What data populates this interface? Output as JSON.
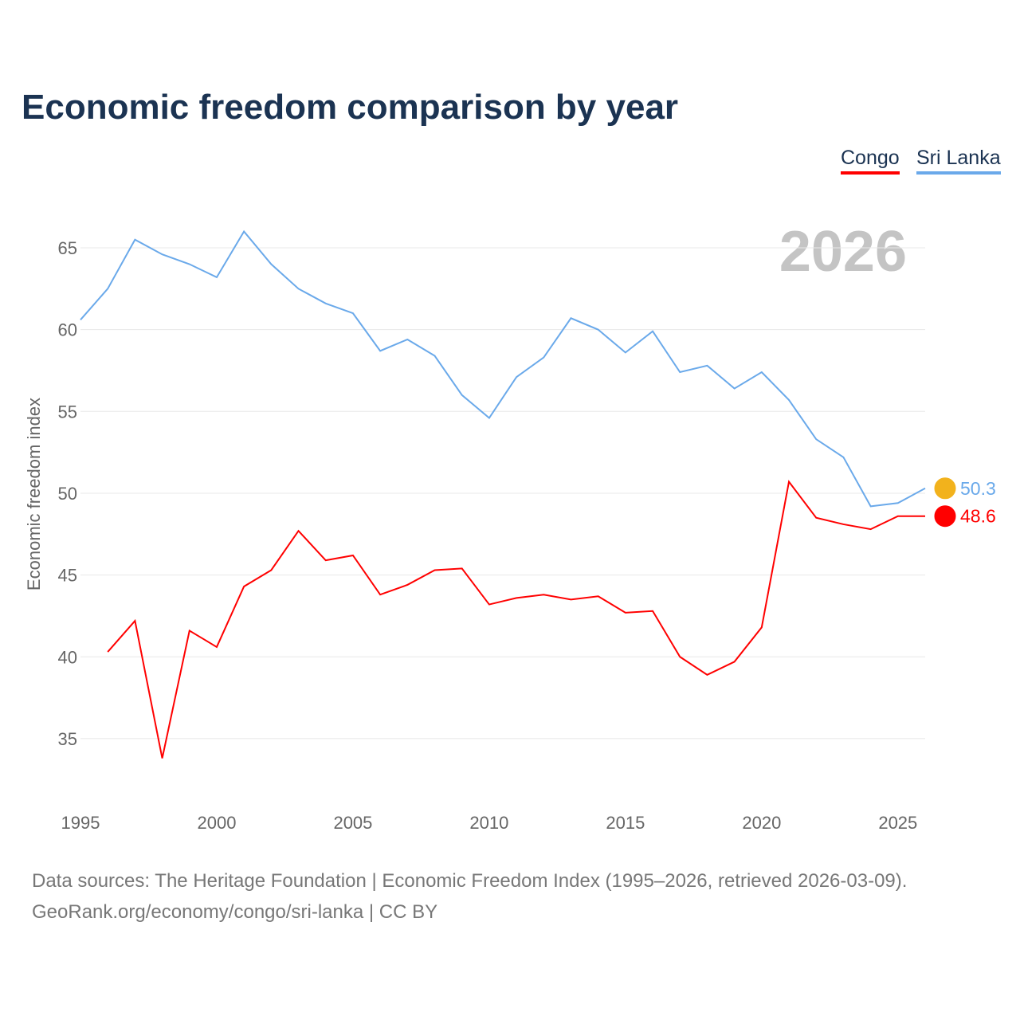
{
  "chart_data": {
    "type": "line",
    "title": "Economic freedom comparison by year",
    "xlabel": "",
    "ylabel": "Economic freedom index",
    "xlim": [
      1995,
      2026
    ],
    "ylim": [
      31,
      68
    ],
    "x_ticks": [
      1995,
      2000,
      2005,
      2010,
      2015,
      2020,
      2025
    ],
    "y_ticks": [
      35,
      40,
      45,
      50,
      55,
      60,
      65
    ],
    "grid": true,
    "legend_position": "top-right",
    "watermark_year": "2026",
    "series": [
      {
        "name": "Congo",
        "color": "#ff0000",
        "end_label": "48.6",
        "x": [
          1996,
          1997,
          1998,
          1999,
          2000,
          2001,
          2002,
          2003,
          2004,
          2005,
          2006,
          2007,
          2008,
          2009,
          2010,
          2011,
          2012,
          2013,
          2014,
          2015,
          2016,
          2017,
          2018,
          2019,
          2020,
          2021,
          2022,
          2023,
          2024,
          2025,
          2026
        ],
        "values": [
          40.3,
          42.2,
          33.8,
          41.6,
          40.6,
          44.3,
          45.3,
          47.7,
          45.9,
          46.2,
          43.8,
          44.4,
          45.3,
          45.4,
          43.2,
          43.6,
          43.8,
          43.5,
          43.7,
          42.7,
          42.8,
          40.0,
          38.9,
          39.7,
          41.8,
          50.7,
          48.5,
          48.1,
          47.8,
          48.6,
          48.6
        ]
      },
      {
        "name": "Sri Lanka",
        "color": "#6aa9ea",
        "end_label": "50.3",
        "x": [
          1995,
          1996,
          1997,
          1998,
          1999,
          2000,
          2001,
          2002,
          2003,
          2004,
          2005,
          2006,
          2007,
          2008,
          2009,
          2010,
          2011,
          2012,
          2013,
          2014,
          2015,
          2016,
          2017,
          2018,
          2019,
          2020,
          2021,
          2022,
          2023,
          2024,
          2025,
          2026
        ],
        "values": [
          60.6,
          62.5,
          65.5,
          64.6,
          64.0,
          63.2,
          66.0,
          64.0,
          62.5,
          61.6,
          61.0,
          58.7,
          59.4,
          58.4,
          56.0,
          54.6,
          57.1,
          58.3,
          60.7,
          60.0,
          58.6,
          59.9,
          57.4,
          57.8,
          56.4,
          57.4,
          55.7,
          53.3,
          52.2,
          49.2,
          49.4,
          50.3
        ]
      }
    ]
  },
  "footer": {
    "line1": "Data sources: The Heritage Foundation | Economic Freedom Index (1995–2026, retrieved 2026-03-09).",
    "line2": "GeoRank.org/economy/congo/sri-lanka | CC BY"
  }
}
